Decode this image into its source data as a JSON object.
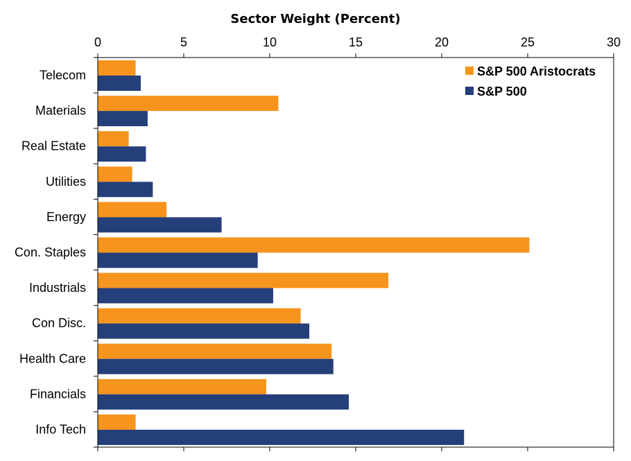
{
  "chart_data": {
    "type": "bar",
    "orientation": "horizontal",
    "title": "Sector Weight (Percent)",
    "xlabel": "",
    "ylabel": "",
    "xlim": [
      0,
      30
    ],
    "xticks": [
      "0",
      "5",
      "10",
      "15",
      "20",
      "25",
      "30"
    ],
    "x_axis_position": "top",
    "grid": false,
    "legend_position": "top-right",
    "categories": [
      "Telecom",
      "Materials",
      "Real Estate",
      "Utilities",
      "Energy",
      "Con. Staples",
      "Industrials",
      "Con Disc.",
      "Health Care",
      "Financials",
      "Info Tech"
    ],
    "series": [
      {
        "name": "S&P 500 Aristocrats",
        "color": "#F7941D",
        "values": [
          2.2,
          10.5,
          1.8,
          2.0,
          4.0,
          25.1,
          16.9,
          11.8,
          13.6,
          9.8,
          2.2
        ]
      },
      {
        "name": "S&P 500",
        "color": "#243F7A",
        "values": [
          2.5,
          2.9,
          2.8,
          3.2,
          7.2,
          9.3,
          10.2,
          12.3,
          13.7,
          14.6,
          21.3
        ]
      }
    ]
  }
}
